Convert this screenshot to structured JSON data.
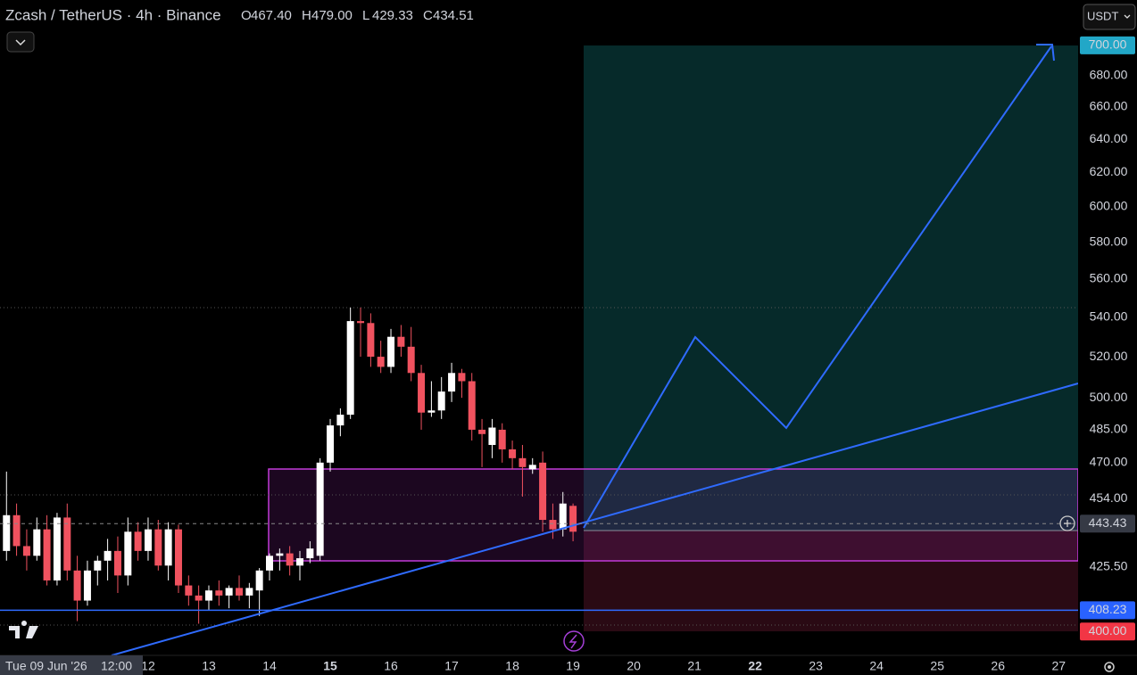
{
  "chart_data": {
    "type": "candlestick",
    "title": "Zcash / TetherUS · 4h · Binance",
    "ohlc": [
      {
        "key": "O",
        "value": "467.40"
      },
      {
        "key": "H",
        "value": "479.00"
      },
      {
        "key": "L",
        "value": "429.33"
      },
      {
        "key": "C",
        "value": "434.51"
      }
    ],
    "currency": "USDT",
    "cursor_time": "Tue 09 Jun '26",
    "cursor_clock": "12:00",
    "x": [
      9.5,
      9.667,
      9.833,
      10,
      10.167,
      10.333,
      10.5,
      10.667,
      10.833,
      11,
      11.167,
      11.333,
      11.5,
      11.667,
      11.833,
      12,
      12.167,
      12.333,
      12.5,
      12.667,
      12.833,
      13,
      13.167,
      13.333,
      13.5,
      13.667,
      13.833,
      14,
      14.167,
      14.333,
      14.5,
      14.667,
      14.833,
      15,
      15.167,
      15.333,
      15.5,
      15.667,
      15.833,
      16,
      16.167,
      16.333,
      16.5,
      16.667,
      16.833,
      17,
      17.167,
      17.333,
      17.5,
      17.667,
      17.833,
      18,
      18.167,
      18.333,
      18.5,
      18.667,
      18.833,
      19
    ],
    "open": [
      445,
      432,
      447,
      434,
      430,
      441,
      420,
      446,
      424,
      412,
      424,
      428,
      432,
      422,
      440,
      432,
      441,
      426,
      441,
      418,
      414,
      412,
      416,
      414,
      417,
      414,
      416,
      424,
      430,
      431,
      426,
      429,
      430,
      470,
      487,
      492,
      538,
      537,
      520,
      515,
      530,
      525,
      512,
      493,
      494,
      503,
      512,
      508,
      485,
      478,
      485,
      476,
      472,
      467,
      470,
      445,
      441,
      451
    ],
    "high": [
      458,
      466,
      452,
      441,
      446,
      447,
      448,
      452,
      430,
      428,
      430,
      437,
      438,
      446,
      444,
      446,
      445,
      444,
      443,
      422,
      418,
      418,
      420,
      418,
      422,
      419,
      425,
      431,
      433,
      434,
      432,
      436,
      472,
      490,
      495,
      545,
      545,
      542,
      528,
      534,
      536,
      535,
      516,
      508,
      510,
      517,
      514,
      512,
      490,
      490,
      488,
      480,
      478,
      472,
      475,
      452,
      457,
      452
    ],
    "low": [
      440,
      428,
      430,
      424,
      428,
      418,
      418,
      420,
      404,
      410,
      418,
      420,
      415,
      418,
      428,
      428,
      424,
      420,
      415,
      410,
      403,
      408,
      410,
      409,
      412,
      409,
      406,
      420,
      424,
      422,
      420,
      427,
      428,
      466,
      482,
      490,
      520,
      515,
      512,
      512,
      520,
      508,
      485,
      491,
      490,
      498,
      500,
      480,
      468,
      472,
      470,
      467,
      455,
      465,
      440,
      437,
      438,
      436
    ],
    "close": [
      441,
      447,
      434,
      430,
      441,
      420,
      446,
      424,
      412,
      424,
      428,
      432,
      422,
      440,
      432,
      441,
      426,
      441,
      418,
      414,
      412,
      416,
      414,
      417,
      414,
      417,
      424,
      430,
      431,
      426,
      429,
      433,
      470,
      487,
      492,
      538,
      537,
      520,
      515,
      530,
      525,
      512,
      493,
      494,
      503,
      512,
      508,
      485,
      483,
      486,
      476,
      472,
      468,
      469,
      445,
      441,
      452,
      440
    ],
    "colors": {
      "up": "#ffffff",
      "down": "#f0525f"
    },
    "xlim": [
      9.56,
      27.32
    ],
    "xticks": [
      12,
      13,
      14,
      15,
      16,
      17,
      18,
      19,
      20,
      21,
      22,
      23,
      24,
      25,
      26,
      27
    ],
    "xticks_bold": [
      15,
      22
    ],
    "ylim": [
      391,
      731
    ],
    "y_scale": "log",
    "yticks": [
      {
        "value": 425.5,
        "label": "425.50"
      },
      {
        "value": 454,
        "label": "454.00"
      },
      {
        "value": 470,
        "label": "470.00"
      },
      {
        "value": 485,
        "label": "485.00"
      },
      {
        "value": 500,
        "label": "500.00"
      },
      {
        "value": 520,
        "label": "520.00"
      },
      {
        "value": 540,
        "label": "540.00"
      },
      {
        "value": 560,
        "label": "560.00"
      },
      {
        "value": 580,
        "label": "580.00"
      },
      {
        "value": 600,
        "label": "600.00"
      },
      {
        "value": 620,
        "label": "620.00"
      },
      {
        "value": 640,
        "label": "640.00"
      },
      {
        "value": 660,
        "label": "660.00"
      },
      {
        "value": 680,
        "label": "680.00"
      }
    ],
    "grid": false,
    "last_price": 443.43,
    "level": 408.23,
    "target": {
      "value": 700,
      "label": "700.00"
    },
    "stop": {
      "value": 400,
      "label": "400.00"
    }
  }
}
